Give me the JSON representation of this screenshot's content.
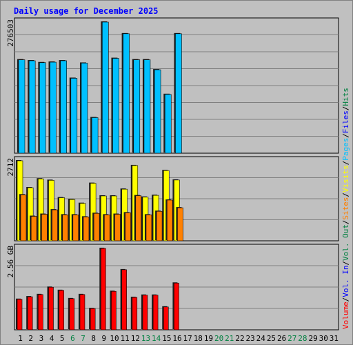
{
  "title": "Daily usage for December 2025",
  "chart_data": {
    "type": "bar",
    "categories": [
      "1",
      "2",
      "3",
      "4",
      "5",
      "6",
      "7",
      "8",
      "9",
      "10",
      "11",
      "12",
      "13",
      "14",
      "15",
      "16",
      "17",
      "18",
      "19",
      "20",
      "21",
      "22",
      "23",
      "24",
      "25",
      "26",
      "27",
      "28",
      "29",
      "30",
      "31"
    ],
    "weekend_days": [
      "6",
      "7",
      "13",
      "14",
      "20",
      "21",
      "27",
      "28"
    ],
    "panels": [
      {
        "name": "hits-files-pages",
        "ymax_label": "276503",
        "ymax": 276503,
        "series": [
          {
            "name": "Hits",
            "color": "#008040",
            "values": [
              197000,
              195000,
              191000,
              192000,
              195000,
              158000,
              190000,
              75000,
              276503,
              200000,
              252000,
              197000,
              197000,
              176000,
              124000,
              252000,
              0,
              0,
              0,
              0,
              0,
              0,
              0,
              0,
              0,
              0,
              0,
              0,
              0,
              0,
              0
            ]
          },
          {
            "name": "Files",
            "color": "#0000ff",
            "values": [
              197000,
              195000,
              191000,
              192000,
              195000,
              158000,
              190000,
              75000,
              276503,
              200000,
              252000,
              197000,
              197000,
              176000,
              124000,
              252000,
              0,
              0,
              0,
              0,
              0,
              0,
              0,
              0,
              0,
              0,
              0,
              0,
              0,
              0,
              0
            ]
          },
          {
            "name": "Pages",
            "color": "#00c0ff",
            "values": [
              197000,
              195000,
              191000,
              192000,
              195000,
              158000,
              190000,
              75000,
              276503,
              200000,
              252000,
              197000,
              197000,
              176000,
              124000,
              252000,
              0,
              0,
              0,
              0,
              0,
              0,
              0,
              0,
              0,
              0,
              0,
              0,
              0,
              0,
              0
            ]
          }
        ]
      },
      {
        "name": "visits-sites",
        "ymax_label": "2712",
        "ymax": 2712,
        "series": [
          {
            "name": "Visits",
            "color": "#ffff00",
            "values": [
              2712,
              1800,
              2100,
              2050,
              1460,
              1400,
              1270,
              1950,
              1520,
              1520,
              1750,
              2550,
              1480,
              1540,
              2380,
              2060,
              0,
              0,
              0,
              0,
              0,
              0,
              0,
              0,
              0,
              0,
              0,
              0,
              0,
              0,
              0
            ]
          },
          {
            "name": "Sites",
            "color": "#ff8000",
            "values": [
              1560,
              830,
              900,
              1050,
              880,
              880,
              810,
              930,
              880,
              900,
              950,
              1530,
              880,
              1000,
              1380,
              1120,
              0,
              0,
              0,
              0,
              0,
              0,
              0,
              0,
              0,
              0,
              0,
              0,
              0,
              0,
              0
            ]
          }
        ]
      },
      {
        "name": "volume",
        "ymax_label": "2.56 GB",
        "ymax": 2.56,
        "series": [
          {
            "name": "Volume",
            "color": "#ff0000",
            "values": [
              0.96,
              1.04,
              1.11,
              1.34,
              1.24,
              0.98,
              1.11,
              0.67,
              2.56,
              1.21,
              1.89,
              1.02,
              1.09,
              1.09,
              0.72,
              1.47,
              0,
              0,
              0,
              0,
              0,
              0,
              0,
              0,
              0,
              0,
              0,
              0,
              0,
              0,
              0
            ]
          },
          {
            "name": "Vol. In",
            "color": "#0000ff",
            "values": []
          },
          {
            "name": "Vol. Out",
            "color": "#008040",
            "values": []
          }
        ]
      }
    ],
    "legend": [
      {
        "text": "Hits",
        "color": "#008040",
        "panel": 0
      },
      {
        "text": "Files",
        "color": "#0000ff",
        "panel": 0
      },
      {
        "text": "Pages",
        "color": "#00c0ff",
        "panel": 0
      },
      {
        "text": "Visits",
        "color": "#ffff00",
        "panel": 1
      },
      {
        "text": "Sites",
        "color": "#ff8000",
        "panel": 1
      },
      {
        "text": "Vol. Out",
        "color": "#008040",
        "panel": 2
      },
      {
        "text": "Vol. In",
        "color": "#0000ff",
        "panel": 2
      },
      {
        "text": "Volume",
        "color": "#ff0000",
        "panel": 2
      }
    ],
    "colors": {
      "background": "#c0c0c0",
      "title": "#0000ff",
      "weekend_tick": "#008040",
      "weekday_tick": "#000000"
    }
  }
}
